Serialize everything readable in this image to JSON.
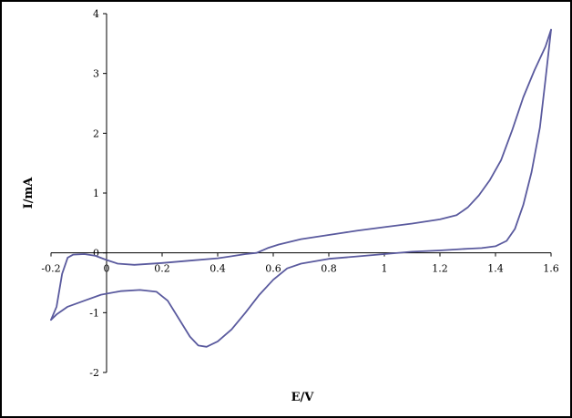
{
  "chart_data": {
    "type": "line",
    "title": "",
    "xlabel": "E/V",
    "ylabel": "I/mA",
    "xlim": [
      -0.2,
      1.6
    ],
    "ylim": [
      -2,
      4
    ],
    "xticks": [
      -0.2,
      0,
      0.2,
      0.4,
      0.6,
      0.8,
      1,
      1.2,
      1.4,
      1.6
    ],
    "xtick_labels": [
      "-0.2",
      "0",
      "0.2",
      "0.4",
      "0.6",
      "0.8",
      "1",
      "1.2",
      "1.4",
      "1.6"
    ],
    "yticks": [
      -2,
      -1,
      0,
      1,
      2,
      3,
      4
    ],
    "ytick_labels": [
      "-2",
      "-1",
      "0",
      "1",
      "2",
      "3",
      "4"
    ],
    "grid": false,
    "legend": "none",
    "line_color": "#5a5a9e",
    "series": [
      {
        "points": [
          [
            -0.2,
            -1.12
          ],
          [
            -0.18,
            -0.9
          ],
          [
            -0.16,
            -0.35
          ],
          [
            -0.14,
            -0.08
          ],
          [
            -0.12,
            -0.03
          ],
          [
            -0.08,
            -0.02
          ],
          [
            -0.04,
            -0.05
          ],
          [
            0.0,
            -0.12
          ],
          [
            0.04,
            -0.18
          ],
          [
            0.1,
            -0.2
          ],
          [
            0.2,
            -0.17
          ],
          [
            0.3,
            -0.13
          ],
          [
            0.4,
            -0.09
          ],
          [
            0.46,
            -0.05
          ],
          [
            0.5,
            -0.02
          ],
          [
            0.54,
            0.0
          ],
          [
            0.58,
            0.08
          ],
          [
            0.62,
            0.14
          ],
          [
            0.7,
            0.23
          ],
          [
            0.8,
            0.3
          ],
          [
            0.9,
            0.37
          ],
          [
            1.0,
            0.43
          ],
          [
            1.1,
            0.49
          ],
          [
            1.2,
            0.56
          ],
          [
            1.26,
            0.63
          ],
          [
            1.3,
            0.76
          ],
          [
            1.34,
            0.96
          ],
          [
            1.38,
            1.22
          ],
          [
            1.42,
            1.55
          ],
          [
            1.46,
            2.05
          ],
          [
            1.5,
            2.6
          ],
          [
            1.54,
            3.05
          ],
          [
            1.58,
            3.45
          ],
          [
            1.6,
            3.73
          ]
        ]
      },
      {
        "points": [
          [
            1.6,
            3.73
          ],
          [
            1.58,
            2.9
          ],
          [
            1.56,
            2.1
          ],
          [
            1.53,
            1.35
          ],
          [
            1.5,
            0.8
          ],
          [
            1.47,
            0.4
          ],
          [
            1.44,
            0.2
          ],
          [
            1.4,
            0.11
          ],
          [
            1.35,
            0.08
          ],
          [
            1.3,
            0.07
          ],
          [
            1.2,
            0.04
          ],
          [
            1.1,
            0.02
          ],
          [
            1.0,
            -0.02
          ],
          [
            0.9,
            -0.06
          ],
          [
            0.8,
            -0.1
          ],
          [
            0.7,
            -0.18
          ],
          [
            0.65,
            -0.26
          ],
          [
            0.6,
            -0.45
          ],
          [
            0.55,
            -0.7
          ],
          [
            0.5,
            -1.0
          ],
          [
            0.45,
            -1.28
          ],
          [
            0.4,
            -1.48
          ],
          [
            0.36,
            -1.57
          ],
          [
            0.33,
            -1.55
          ],
          [
            0.3,
            -1.4
          ],
          [
            0.26,
            -1.1
          ],
          [
            0.22,
            -0.8
          ],
          [
            0.18,
            -0.65
          ],
          [
            0.12,
            -0.62
          ],
          [
            0.05,
            -0.64
          ],
          [
            -0.02,
            -0.7
          ],
          [
            -0.08,
            -0.8
          ],
          [
            -0.14,
            -0.9
          ],
          [
            -0.18,
            -1.03
          ],
          [
            -0.2,
            -1.12
          ]
        ]
      }
    ]
  }
}
